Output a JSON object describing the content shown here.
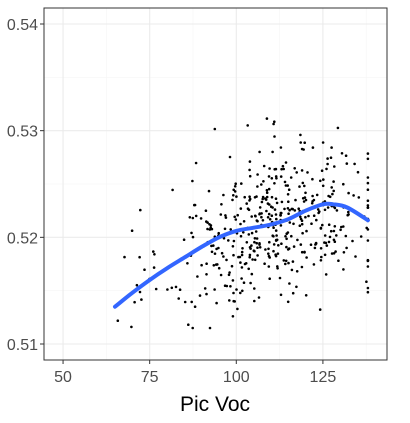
{
  "chart_data": {
    "type": "scatter",
    "title": "",
    "xlabel": "Pic Voc",
    "ylabel": "",
    "xlim": [
      44.5,
      143.5
    ],
    "ylim": [
      0.5085,
      0.5415
    ],
    "x_ticks": [
      50,
      75,
      100,
      125
    ],
    "y_ticks": [
      0.51,
      0.52,
      0.53,
      0.54
    ],
    "x_tick_labels": [
      "50",
      "75",
      "100",
      "125"
    ],
    "y_tick_labels": [
      "0.51",
      "0.52",
      "0.53",
      "0.54"
    ],
    "grid": true,
    "legend": "none",
    "colors": {
      "points": "#000000",
      "smooth": "#3366ff",
      "grid_major": "#ebebeb",
      "grid_minor": "#f5f5f5",
      "panel_border": "#333333"
    },
    "scatter_seed": 20240611,
    "scatter_n": 480,
    "smooth": {
      "x": [
        65,
        70,
        75,
        80,
        85,
        90,
        95,
        100,
        105,
        110,
        115,
        120,
        125,
        128,
        132,
        138
      ],
      "y": [
        0.5135,
        0.5148,
        0.516,
        0.5171,
        0.5181,
        0.5191,
        0.52,
        0.5206,
        0.5209,
        0.5212,
        0.5217,
        0.5225,
        0.5231,
        0.5231,
        0.5228,
        0.5216
      ]
    }
  }
}
